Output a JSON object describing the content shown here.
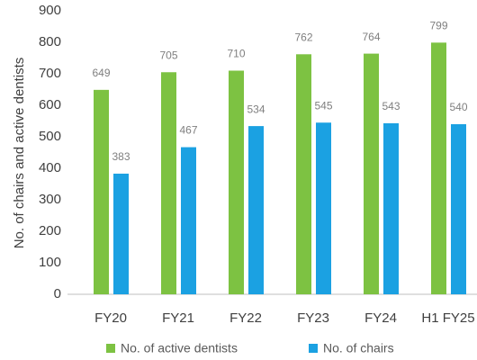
{
  "chart_data": {
    "type": "bar",
    "y_label": "No. of chairs and active dentists",
    "categories": [
      "FY20",
      "FY21",
      "FY22",
      "FY23",
      "FY24",
      "H1 FY25"
    ],
    "series": [
      {
        "name": "No. of active dentists",
        "color": "#7dc242",
        "values": [
          649,
          705,
          710,
          762,
          764,
          799
        ]
      },
      {
        "name": "No. of chairs",
        "color": "#1ba1e2",
        "values": [
          383,
          467,
          534,
          545,
          543,
          540
        ]
      }
    ],
    "ylim": [
      0,
      900
    ],
    "yticks": [
      0,
      100,
      200,
      300,
      400,
      500,
      600,
      700,
      800,
      900
    ],
    "grid": false,
    "legend": "bottom"
  }
}
